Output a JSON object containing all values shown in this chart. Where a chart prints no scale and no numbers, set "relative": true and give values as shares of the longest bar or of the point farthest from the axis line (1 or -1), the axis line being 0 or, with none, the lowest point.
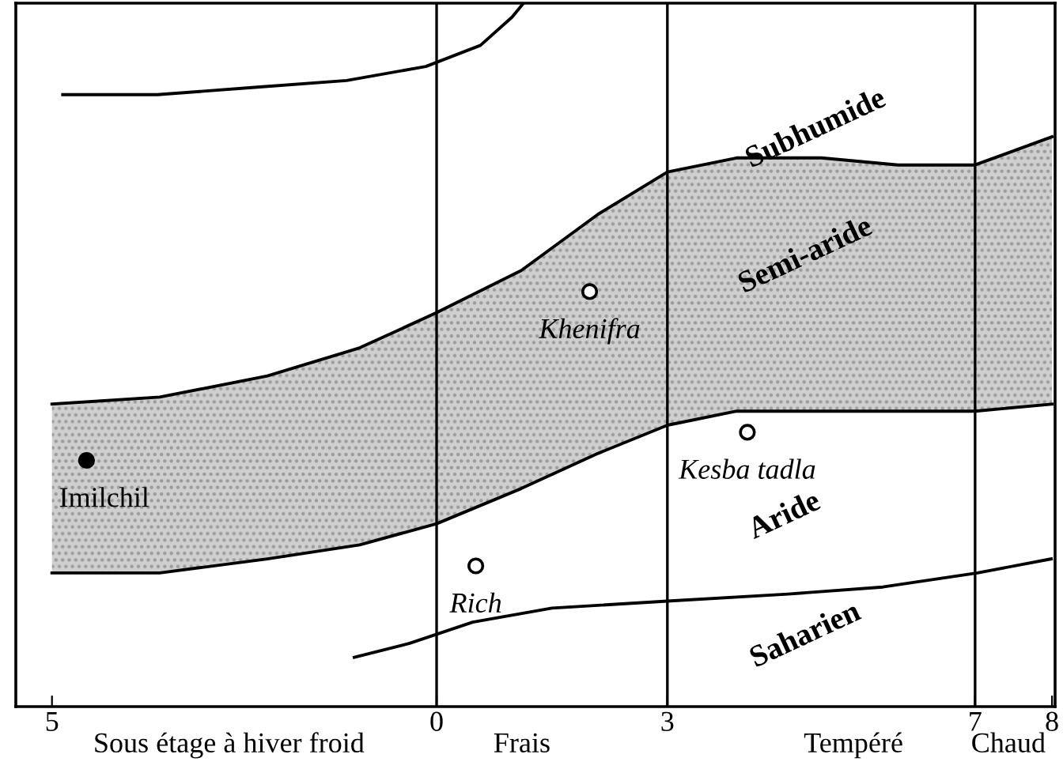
{
  "chart_data": {
    "type": "line",
    "relative": true,
    "xlim": [
      -5.47,
      8.04
    ],
    "xticks": [
      {
        "value": -5,
        "label": "5"
      },
      0,
      3,
      7,
      8
    ],
    "series": [
      {
        "color": "#000000",
        "x": [
          -5.0,
          -3.6,
          -2.2,
          -1.0,
          0,
          1.1,
          2.1,
          3.0,
          3.9,
          5.0,
          6.0,
          7.0,
          8.0
        ],
        "values": [
          0.43,
          0.44,
          0.47,
          0.51,
          0.56,
          0.62,
          0.7,
          0.76,
          0.78,
          0.78,
          0.77,
          0.77,
          0.81
        ]
      },
      {
        "color": "#000000",
        "x": [
          -5.0,
          -3.6,
          -2.2,
          -1.0,
          0,
          1.1,
          2.1,
          3.0,
          3.9,
          5.0,
          6.0,
          7.0,
          8.0
        ],
        "values": [
          0.19,
          0.19,
          0.21,
          0.23,
          0.26,
          0.31,
          0.36,
          0.4,
          0.42,
          0.42,
          0.42,
          0.42,
          0.43
        ]
      },
      {
        "color": "#000000",
        "x": [
          -4.86,
          -3.63,
          -2.4,
          -1.17,
          -0.14,
          0.57,
          0.98,
          1.13
        ],
        "values": [
          0.87,
          0.87,
          0.88,
          0.89,
          0.91,
          0.94,
          0.98,
          1.0
        ]
      },
      {
        "color": "#000000",
        "x": [
          -1.07,
          -0.35,
          0.47,
          1.5,
          3.0,
          4.57,
          5.8,
          7.03,
          7.99
        ],
        "values": [
          0.07,
          0.09,
          0.12,
          0.14,
          0.15,
          0.16,
          0.17,
          0.19,
          0.21
        ]
      },
      {
        "type": "scatter",
        "marker": "circle",
        "name": "Imilchil",
        "color": "#000000",
        "x": [
          -4.55
        ],
        "values": [
          0.35
        ]
      },
      {
        "type": "scatter",
        "marker": "circle",
        "name": "Khenifra",
        "color": "#ffffff",
        "x": [
          1.99
        ],
        "values": [
          0.59
        ]
      },
      {
        "type": "scatter",
        "marker": "circle",
        "name": "Kesba tadla",
        "color": "#ffffff",
        "x": [
          4.04
        ],
        "values": [
          0.39
        ]
      },
      {
        "type": "scatter",
        "marker": "circle",
        "name": "Rich",
        "color": "#ffffff",
        "x": [
          0.51
        ],
        "values": [
          0.2
        ]
      }
    ],
    "ref_lines": [
      {
        "axis": "x",
        "value": 0,
        "color": "#000000"
      },
      {
        "axis": "x",
        "value": 3,
        "color": "#000000"
      },
      {
        "axis": "x",
        "value": 7,
        "color": "#000000"
      }
    ],
    "annotations": [
      "Subhumide",
      "Semi-aride",
      "Aride",
      "Saharien",
      "Sous étage à hiver froid",
      "Frais",
      "Tempéré",
      "Chaud"
    ]
  }
}
